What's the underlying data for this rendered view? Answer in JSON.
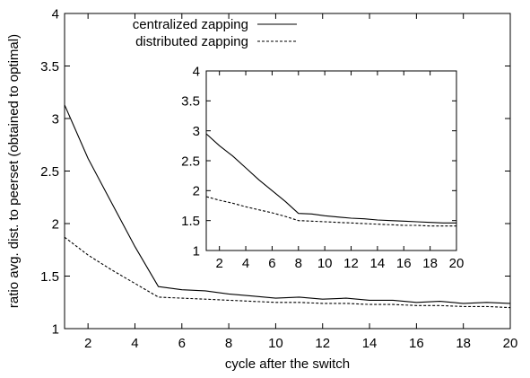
{
  "chart_data": [
    {
      "type": "line",
      "xlabel": "cycle after the switch",
      "ylabel": "ratio avg. dist. to peerset (obtained to optimal)",
      "xlim": [
        1,
        20
      ],
      "ylim": [
        1,
        4
      ],
      "xticks": [
        2,
        4,
        6,
        8,
        10,
        12,
        14,
        16,
        18,
        20
      ],
      "yticks": [
        1,
        1.5,
        2,
        2.5,
        3,
        3.5,
        4
      ],
      "ytick_labels": [
        "1",
        "1.5",
        "2",
        "2.5",
        "3",
        "3.5",
        "4"
      ],
      "grid": false,
      "legend_position": "top-center",
      "x": [
        1,
        2,
        3,
        4,
        5,
        6,
        7,
        8,
        9,
        10,
        11,
        12,
        13,
        14,
        15,
        16,
        17,
        18,
        19,
        20
      ],
      "series": [
        {
          "name": "centralized zapping",
          "style": "solid",
          "values": [
            3.13,
            2.62,
            2.2,
            1.78,
            1.4,
            1.37,
            1.36,
            1.33,
            1.31,
            1.29,
            1.3,
            1.28,
            1.29,
            1.27,
            1.27,
            1.25,
            1.26,
            1.24,
            1.25,
            1.24
          ]
        },
        {
          "name": "distributed zapping",
          "style": "dashed",
          "values": [
            1.87,
            1.7,
            1.56,
            1.43,
            1.3,
            1.29,
            1.28,
            1.27,
            1.26,
            1.25,
            1.25,
            1.24,
            1.24,
            1.23,
            1.23,
            1.22,
            1.22,
            1.21,
            1.21,
            1.2
          ]
        }
      ]
    },
    {
      "type": "line",
      "xlim": [
        1,
        20
      ],
      "ylim": [
        1,
        4
      ],
      "xticks": [
        2,
        4,
        6,
        8,
        10,
        12,
        14,
        16,
        18,
        20
      ],
      "yticks": [
        1,
        1.5,
        2,
        2.5,
        3,
        3.5,
        4
      ],
      "ytick_labels": [
        "1",
        "1.5",
        "2",
        "2.5",
        "3",
        "3.5",
        "4"
      ],
      "grid": false,
      "x": [
        1,
        2,
        3,
        4,
        5,
        6,
        7,
        8,
        9,
        10,
        11,
        12,
        13,
        14,
        15,
        16,
        17,
        18,
        19,
        20
      ],
      "series": [
        {
          "style": "solid",
          "values": [
            2.95,
            2.75,
            2.58,
            2.38,
            2.18,
            2.0,
            1.82,
            1.62,
            1.61,
            1.58,
            1.56,
            1.54,
            1.53,
            1.51,
            1.5,
            1.49,
            1.48,
            1.47,
            1.46,
            1.46
          ]
        },
        {
          "style": "dashed",
          "values": [
            1.9,
            1.84,
            1.79,
            1.73,
            1.68,
            1.63,
            1.57,
            1.5,
            1.49,
            1.48,
            1.47,
            1.46,
            1.45,
            1.44,
            1.43,
            1.42,
            1.42,
            1.41,
            1.41,
            1.41
          ]
        }
      ]
    }
  ]
}
